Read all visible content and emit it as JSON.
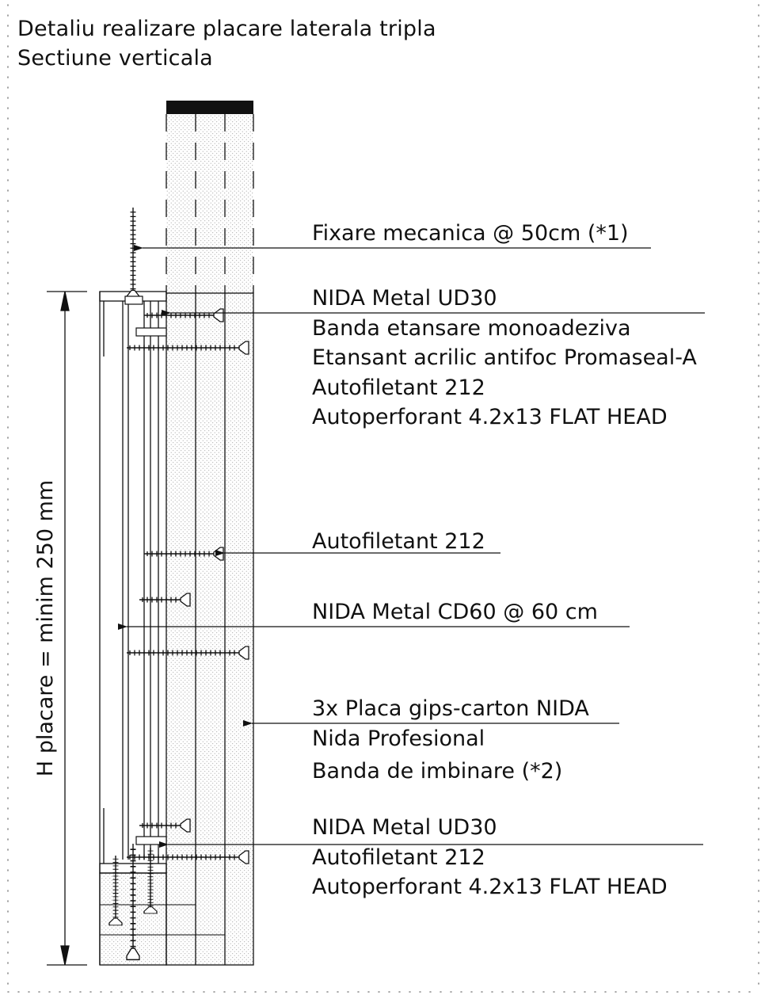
{
  "title": {
    "line1": "Detaliu realizare placare laterala tripla",
    "line2": "Sectiune verticala"
  },
  "dimension": {
    "label": "H placare = minim 250 mm"
  },
  "callouts": [
    {
      "id": "fixing",
      "lines": [
        "Fixare mecanica @ 50cm (*1)"
      ]
    },
    {
      "id": "top-group",
      "lines": [
        "NIDA Metal UD30",
        "Banda etansare monoadeziva",
        "Etansant acrilic antifoc Promaseal-A",
        "Autofiletant 212",
        "Autoperforant 4.2x13 FLAT HEAD"
      ]
    },
    {
      "id": "screw-212",
      "lines": [
        "Autofiletant 212"
      ]
    },
    {
      "id": "cd60",
      "lines": [
        "NIDA Metal CD60 @ 60 cm"
      ]
    },
    {
      "id": "boards",
      "lines": [
        "3x Placa gips-carton NIDA",
        "Nida Profesional",
        "Banda de imbinare (*2)"
      ]
    },
    {
      "id": "bottom-group",
      "lines": [
        "NIDA Metal UD30",
        "Autofiletant 212",
        "Autoperforant 4.2x13 FLAT HEAD"
      ]
    }
  ],
  "colors": {
    "line": "#111111",
    "fill_dot": "#9a9a9a",
    "frame_dot": "#8a8a8a"
  }
}
